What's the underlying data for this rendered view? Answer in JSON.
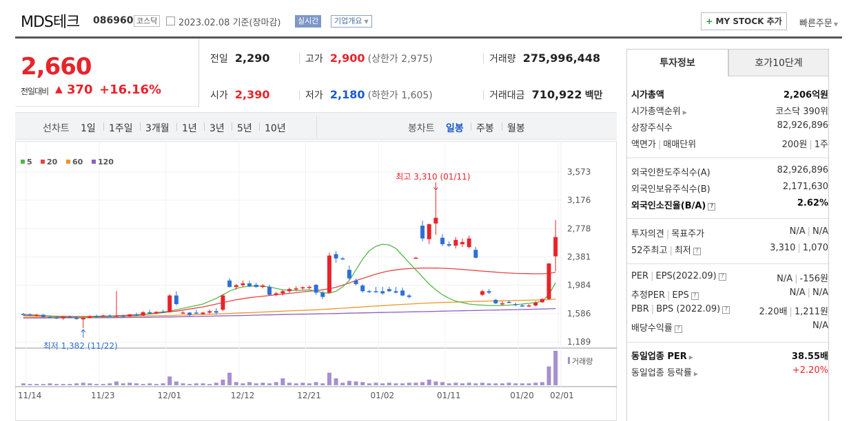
{
  "header": {
    "company": "MDS테크",
    "code": "086960",
    "market": "코스닥",
    "date": "2023.02.08 기준(장마감)",
    "realtime": "실시간",
    "corp_info": "기업개요",
    "mystock": "MY STOCK 추가",
    "quick_order": "빠른주문"
  },
  "price": {
    "current": "2,660",
    "change_label": "전일대비",
    "change_value": "370",
    "change_pct": "+16.16%"
  },
  "summary": {
    "prev_label": "전일",
    "prev": "2,290",
    "high_label": "고가",
    "high": "2,900",
    "upper_limit": "(상한가 2,975)",
    "volume_label": "거래량",
    "volume": "275,996,448",
    "open_label": "시가",
    "open": "2,390",
    "low_label": "저가",
    "low": "2,180",
    "lower_limit": "(하한가 1,605)",
    "amount_label": "거래대금",
    "amount": "710,922",
    "amount_unit": "백만"
  },
  "period_bar": {
    "line_label": "선차트",
    "line_periods": [
      "1일",
      "1주일",
      "3개월",
      "1년",
      "3년",
      "5년",
      "10년"
    ],
    "candle_label": "봉차트",
    "candle_periods": [
      "일봉",
      "주봉",
      "월봉"
    ],
    "active_candle": "일봉"
  },
  "chart_data": {
    "type": "candlestick",
    "legend": [
      {
        "name": "5",
        "color": "#53b64a"
      },
      {
        "name": "20",
        "color": "#e8433e"
      },
      {
        "name": "60",
        "color": "#f29423"
      },
      {
        "name": "120",
        "color": "#8b5fc4"
      }
    ],
    "y_ticks": [
      "3,573",
      "3,176",
      "2,778",
      "2,381",
      "1,984",
      "1,586",
      "1,189"
    ],
    "ylim": [
      1189,
      3573
    ],
    "x_ticks": [
      "11/14",
      "11/23",
      "12/01",
      "12/12",
      "12/21",
      "01/02",
      "01/11",
      "01/20",
      "02/01"
    ],
    "annotations": {
      "high": "최고 3,310 (01/11)",
      "low": "최저 1,382 (11/22)"
    },
    "volume_label": "거래량",
    "up_color": "#e8232a",
    "down_color": "#2d6fd6",
    "candles": [
      {
        "o": 1580,
        "h": 1595,
        "l": 1560,
        "c": 1575
      },
      {
        "o": 1575,
        "h": 1590,
        "l": 1555,
        "c": 1560
      },
      {
        "o": 1560,
        "h": 1580,
        "l": 1545,
        "c": 1570
      },
      {
        "o": 1570,
        "h": 1580,
        "l": 1530,
        "c": 1540
      },
      {
        "o": 1540,
        "h": 1560,
        "l": 1520,
        "c": 1530
      },
      {
        "o": 1530,
        "h": 1550,
        "l": 1510,
        "c": 1520
      },
      {
        "o": 1520,
        "h": 1545,
        "l": 1500,
        "c": 1540
      },
      {
        "o": 1540,
        "h": 1560,
        "l": 1520,
        "c": 1530
      },
      {
        "o": 1530,
        "h": 1550,
        "l": 1500,
        "c": 1510
      },
      {
        "o": 1505,
        "h": 1535,
        "l": 1382,
        "c": 1525
      },
      {
        "o": 1525,
        "h": 1560,
        "l": 1520,
        "c": 1550
      },
      {
        "o": 1550,
        "h": 1570,
        "l": 1530,
        "c": 1545
      },
      {
        "o": 1545,
        "h": 1570,
        "l": 1535,
        "c": 1560
      },
      {
        "o": 1560,
        "h": 1575,
        "l": 1540,
        "c": 1550
      },
      {
        "o": 1550,
        "h": 1900,
        "l": 1540,
        "c": 1555
      },
      {
        "o": 1555,
        "h": 1570,
        "l": 1530,
        "c": 1545
      },
      {
        "o": 1545,
        "h": 1580,
        "l": 1540,
        "c": 1575
      },
      {
        "o": 1575,
        "h": 1600,
        "l": 1550,
        "c": 1560
      },
      {
        "o": 1560,
        "h": 1620,
        "l": 1555,
        "c": 1605
      },
      {
        "o": 1605,
        "h": 1640,
        "l": 1580,
        "c": 1590
      },
      {
        "o": 1590,
        "h": 1620,
        "l": 1580,
        "c": 1610
      },
      {
        "o": 1610,
        "h": 1640,
        "l": 1595,
        "c": 1600
      },
      {
        "o": 1610,
        "h": 1860,
        "l": 1600,
        "c": 1840
      },
      {
        "o": 1840,
        "h": 1900,
        "l": 1700,
        "c": 1720
      },
      {
        "o": 1590,
        "h": 1620,
        "l": 1580,
        "c": 1600
      },
      {
        "o": 1600,
        "h": 1610,
        "l": 1550,
        "c": 1570
      },
      {
        "o": 1600,
        "h": 1640,
        "l": 1580,
        "c": 1590
      },
      {
        "o": 1580,
        "h": 1610,
        "l": 1570,
        "c": 1600
      },
      {
        "o": 1600,
        "h": 1640,
        "l": 1580,
        "c": 1620
      },
      {
        "o": 1620,
        "h": 1660,
        "l": 1570,
        "c": 1600
      },
      {
        "o": 1640,
        "h": 1860,
        "l": 1620,
        "c": 1840
      },
      {
        "o": 2050,
        "h": 2080,
        "l": 1950,
        "c": 1960
      },
      {
        "o": 1960,
        "h": 2000,
        "l": 1920,
        "c": 1985
      },
      {
        "o": 1985,
        "h": 2050,
        "l": 1960,
        "c": 2010
      },
      {
        "o": 2010,
        "h": 2050,
        "l": 1960,
        "c": 1970
      },
      {
        "o": 1990,
        "h": 2020,
        "l": 1950,
        "c": 1960
      },
      {
        "o": 1960,
        "h": 2000,
        "l": 1940,
        "c": 1980
      },
      {
        "o": 1960,
        "h": 1990,
        "l": 1840,
        "c": 1850
      },
      {
        "o": 1850,
        "h": 1890,
        "l": 1830,
        "c": 1870
      },
      {
        "o": 1870,
        "h": 1920,
        "l": 1840,
        "c": 1900
      },
      {
        "o": 1900,
        "h": 1950,
        "l": 1880,
        "c": 1930
      },
      {
        "o": 1930,
        "h": 1970,
        "l": 1900,
        "c": 1940
      },
      {
        "o": 1940,
        "h": 1970,
        "l": 1920,
        "c": 1955
      },
      {
        "o": 1955,
        "h": 1980,
        "l": 1930,
        "c": 1960
      },
      {
        "o": 1990,
        "h": 2000,
        "l": 1850,
        "c": 1880
      },
      {
        "o": 1880,
        "h": 1900,
        "l": 1790,
        "c": 1820
      },
      {
        "o": 1880,
        "h": 2440,
        "l": 1870,
        "c": 2400
      },
      {
        "o": 2420,
        "h": 2460,
        "l": 2300,
        "c": 2360
      },
      {
        "o": 2360,
        "h": 2380,
        "l": 2340,
        "c": 2350
      },
      {
        "o": 2200,
        "h": 2260,
        "l": 2060,
        "c": 2080
      },
      {
        "o": 2050,
        "h": 2080,
        "l": 1980,
        "c": 2000
      },
      {
        "o": 1980,
        "h": 2000,
        "l": 1880,
        "c": 1900
      },
      {
        "o": 1900,
        "h": 1920,
        "l": 1880,
        "c": 1890
      },
      {
        "o": 1900,
        "h": 1960,
        "l": 1880,
        "c": 1890
      },
      {
        "o": 1900,
        "h": 1960,
        "l": 1850,
        "c": 1870
      },
      {
        "o": 1930,
        "h": 1960,
        "l": 1890,
        "c": 1900
      },
      {
        "o": 1900,
        "h": 1960,
        "l": 1870,
        "c": 1880
      },
      {
        "o": 1910,
        "h": 1950,
        "l": 1830,
        "c": 1840
      },
      {
        "o": 1840,
        "h": 1860,
        "l": 1800,
        "c": 1820
      },
      {
        "o": 2370,
        "h": 2380,
        "l": 2360,
        "c": 2370
      },
      {
        "o": 2820,
        "h": 2890,
        "l": 2600,
        "c": 2640
      },
      {
        "o": 2630,
        "h": 2850,
        "l": 2560,
        "c": 2840
      },
      {
        "o": 2850,
        "h": 3310,
        "l": 2690,
        "c": 2930
      },
      {
        "o": 2650,
        "h": 2700,
        "l": 2530,
        "c": 2560
      },
      {
        "o": 2560,
        "h": 2600,
        "l": 2520,
        "c": 2540
      },
      {
        "o": 2540,
        "h": 2660,
        "l": 2500,
        "c": 2620
      },
      {
        "o": 2560,
        "h": 2640,
        "l": 2520,
        "c": 2590
      },
      {
        "o": 2520,
        "h": 2680,
        "l": 2500,
        "c": 2640
      },
      {
        "o": 2480,
        "h": 2520,
        "l": 2360,
        "c": 2370
      },
      {
        "o": 1850,
        "h": 1920,
        "l": 1830,
        "c": 1900
      },
      {
        "o": 1900,
        "h": 1930,
        "l": 1860,
        "c": 1880
      },
      {
        "o": 1780,
        "h": 1790,
        "l": 1720,
        "c": 1730
      },
      {
        "o": 1720,
        "h": 1760,
        "l": 1700,
        "c": 1730
      },
      {
        "o": 1750,
        "h": 1770,
        "l": 1730,
        "c": 1740
      },
      {
        "o": 1720,
        "h": 1740,
        "l": 1690,
        "c": 1710
      },
      {
        "o": 1700,
        "h": 1720,
        "l": 1680,
        "c": 1690
      },
      {
        "o": 1690,
        "h": 1720,
        "l": 1680,
        "c": 1700
      },
      {
        "o": 1700,
        "h": 1760,
        "l": 1690,
        "c": 1740
      },
      {
        "o": 1745,
        "h": 1800,
        "l": 1740,
        "c": 1790
      },
      {
        "o": 1790,
        "h": 2290,
        "l": 1780,
        "c": 2290
      },
      {
        "o": 2390,
        "h": 2900,
        "l": 2180,
        "c": 2660
      }
    ],
    "volumes": [
      3,
      2,
      2,
      2,
      3,
      2,
      2,
      2,
      3,
      4,
      3,
      2,
      2,
      3,
      6,
      3,
      4,
      3,
      2,
      3,
      2,
      3,
      14,
      6,
      3,
      2,
      3,
      3,
      2,
      4,
      9,
      20,
      5,
      3,
      5,
      3,
      4,
      3,
      5,
      11,
      4,
      3,
      4,
      3,
      5,
      3,
      20,
      11,
      4,
      7,
      6,
      5,
      3,
      4,
      3,
      4,
      3,
      3,
      4,
      4,
      5,
      9,
      6,
      5,
      3,
      4,
      3,
      4,
      3,
      4,
      3,
      3,
      3,
      4,
      3,
      3,
      3,
      4,
      5,
      30,
      55
    ],
    "ma5": [
      1575,
      1570,
      1566,
      1560,
      1553,
      1545,
      1540,
      1535,
      1530,
      1528,
      1530,
      1535,
      1540,
      1545,
      1550,
      1552,
      1555,
      1560,
      1570,
      1585,
      1600,
      1610,
      1620,
      1640,
      1660,
      1680,
      1700,
      1720,
      1760,
      1800,
      1850,
      1900,
      1940,
      1960,
      1970,
      1975,
      1970,
      1960,
      1940,
      1920,
      1915,
      1910,
      1915,
      1920,
      1900,
      1880,
      1870,
      1900,
      1960,
      2050,
      2200,
      2350,
      2470,
      2530,
      2560,
      2550,
      2500,
      2400,
      2300,
      2200,
      2100,
      2000,
      1920,
      1850,
      1800,
      1760,
      1740,
      1720,
      1710,
      1705,
      1700,
      1700,
      1700,
      1705,
      1710,
      1720,
      1730,
      1740,
      1760,
      1850,
      2020
    ],
    "ma20": [
      1560,
      1558,
      1556,
      1554,
      1552,
      1550,
      1548,
      1546,
      1545,
      1545,
      1546,
      1548,
      1550,
      1552,
      1556,
      1560,
      1565,
      1570,
      1575,
      1580,
      1590,
      1600,
      1610,
      1620,
      1635,
      1650,
      1665,
      1680,
      1700,
      1720,
      1740,
      1760,
      1780,
      1795,
      1810,
      1820,
      1830,
      1840,
      1850,
      1860,
      1870,
      1880,
      1890,
      1900,
      1910,
      1920,
      1935,
      1955,
      1985,
      2015,
      2050,
      2080,
      2110,
      2140,
      2165,
      2185,
      2200,
      2210,
      2218,
      2222,
      2225,
      2226,
      2225,
      2222,
      2218,
      2212,
      2205,
      2198,
      2190,
      2182,
      2175,
      2168,
      2160,
      2155,
      2150,
      2148,
      2146,
      2145,
      2145,
      2150,
      2165
    ],
    "ma60": [
      1535,
      1535,
      1536,
      1536,
      1537,
      1538,
      1538,
      1539,
      1540,
      1540,
      1541,
      1542,
      1543,
      1544,
      1545,
      1546,
      1548,
      1550,
      1552,
      1554,
      1556,
      1558,
      1560,
      1562,
      1565,
      1568,
      1571,
      1574,
      1577,
      1580,
      1584,
      1588,
      1592,
      1596,
      1600,
      1604,
      1608,
      1612,
      1616,
      1620,
      1624,
      1628,
      1632,
      1636,
      1640,
      1644,
      1650,
      1656,
      1662,
      1668,
      1674,
      1680,
      1686,
      1692,
      1698,
      1704,
      1710,
      1715,
      1720,
      1725,
      1730,
      1734,
      1738,
      1742,
      1745,
      1748,
      1751,
      1754,
      1757,
      1760,
      1762,
      1764,
      1766,
      1768,
      1770,
      1772,
      1774,
      1776,
      1778,
      1782,
      1790
    ],
    "ma120": [
      1525,
      1525,
      1525,
      1525,
      1526,
      1526,
      1526,
      1527,
      1527,
      1527,
      1528,
      1528,
      1529,
      1529,
      1530,
      1531,
      1532,
      1533,
      1534,
      1535,
      1536,
      1537,
      1538,
      1540,
      1542,
      1544,
      1546,
      1548,
      1550,
      1552,
      1554,
      1556,
      1558,
      1560,
      1562,
      1564,
      1566,
      1568,
      1570,
      1572,
      1574,
      1576,
      1578,
      1580,
      1582,
      1584,
      1586,
      1588,
      1590,
      1592,
      1594,
      1596,
      1598,
      1600,
      1602,
      1604,
      1606,
      1608,
      1610,
      1612,
      1614,
      1616,
      1618,
      1620,
      1622,
      1624,
      1626,
      1628,
      1630,
      1632,
      1634,
      1636,
      1638,
      1640,
      1642,
      1644,
      1646,
      1648,
      1650,
      1653,
      1656
    ]
  },
  "right_panel": {
    "tab_invest": "투자정보",
    "tab_hoga": "호가10단계",
    "market_cap_label": "시가총액",
    "market_cap": "2,206억원",
    "cap_rank_label": "시가총액순위",
    "cap_rank": "코스닥 390위",
    "shares_label": "상장주식수",
    "shares": "82,926,896",
    "par_label": "액면가",
    "trade_unit_label": "매매단위",
    "par": "200원",
    "trade_unit": "1주",
    "foreign_limit_label": "외국인한도주식수(A)",
    "foreign_limit": "82,926,896",
    "foreign_hold_label": "외국인보유주식수(B)",
    "foreign_hold": "2,171,630",
    "foreign_ratio_label": "외국인소진율(B/A)",
    "foreign_ratio": "2.62%",
    "opinion_label": "투자의견",
    "target_label": "목표주가",
    "opinion": "N/A",
    "target": "N/A",
    "w52_high_label": "52주최고",
    "w52_low_label": "최저",
    "w52_high": "3,310",
    "w52_low": "1,070",
    "per_label": "PER",
    "eps_label": "EPS(2022.09)",
    "per": "N/A",
    "eps": "-156원",
    "est_per_label": "추정PER",
    "est_eps_label": "EPS",
    "est_per": "N/A",
    "est_eps": "N/A",
    "pbr_label": "PBR",
    "bps_label": "BPS (2022.09)",
    "pbr": "2.20배",
    "bps": "1,211원",
    "div_label": "배당수익률",
    "div": "N/A",
    "sector_per_label": "동일업종 PER",
    "sector_per": "38.55배",
    "sector_chg_label": "동일업종 등락률",
    "sector_chg": "+2.20%"
  }
}
